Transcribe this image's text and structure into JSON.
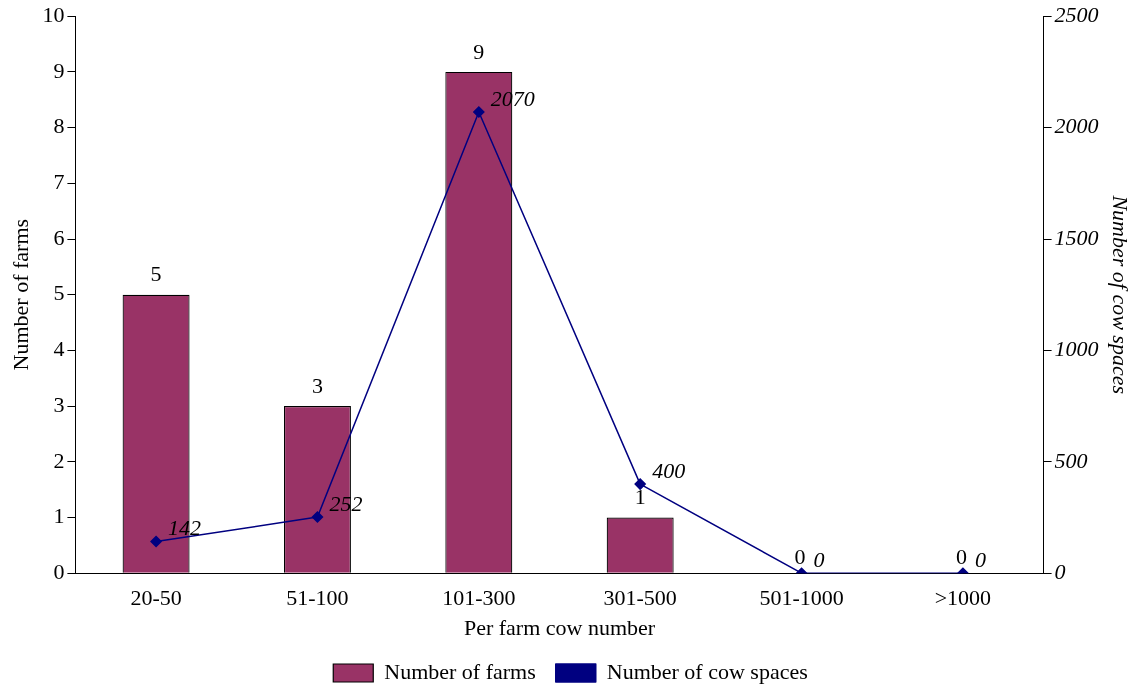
{
  "chart_data": {
    "type": "bar",
    "xlabel": "Per farm cow number",
    "ylabel": "Number of farms",
    "y2label": "Number of cow spaces",
    "categories": [
      "20-50",
      "51-100",
      "101-300",
      "301-500",
      "501-1000",
      ">1000"
    ],
    "series": [
      {
        "name": "Number of farms",
        "color": "#993366",
        "values": [
          5,
          3,
          9,
          1,
          0,
          0
        ]
      },
      {
        "name": "Number of cow spaces",
        "type": "line",
        "axis": "y2",
        "color": "#000080",
        "values": [
          142,
          252,
          2070,
          400,
          0,
          0
        ]
      }
    ],
    "ylim": [
      0,
      10
    ],
    "yticks": [
      0,
      1,
      2,
      3,
      4,
      5,
      6,
      7,
      8,
      9,
      10
    ],
    "y2lim": [
      0,
      2500
    ],
    "y2ticks": [
      0,
      500,
      1000,
      1500,
      2000,
      2500
    ],
    "data_labels": true,
    "grid": false,
    "legend": "bottom",
    "marker": "diamond",
    "line_style": "solid"
  }
}
